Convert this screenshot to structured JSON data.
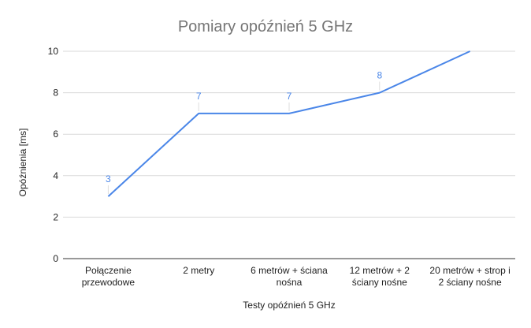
{
  "chart_data": {
    "type": "line",
    "title": "Pomiary opóźnień 5 GHz",
    "xlabel": "Testy opóźnień 5 GHz",
    "ylabel": "Opóźnienia [ms]",
    "categories": [
      [
        "Połączenie",
        "przewodowe"
      ],
      [
        "2 metry"
      ],
      [
        "6 metrów + ściana",
        "nośna"
      ],
      [
        "12 metrów + 2",
        "ściany nośne"
      ],
      [
        "20 metrów + strop i",
        "2 ściany nośne"
      ]
    ],
    "series": [
      {
        "values": [
          3,
          7,
          7,
          8,
          10
        ],
        "color": "#4a86e8"
      }
    ],
    "data_labels": [
      3,
      7,
      7,
      8,
      null
    ],
    "yticks": [
      0,
      2,
      4,
      6,
      8,
      10
    ],
    "ylim": [
      0,
      10
    ],
    "grid": true,
    "legend": "none"
  }
}
